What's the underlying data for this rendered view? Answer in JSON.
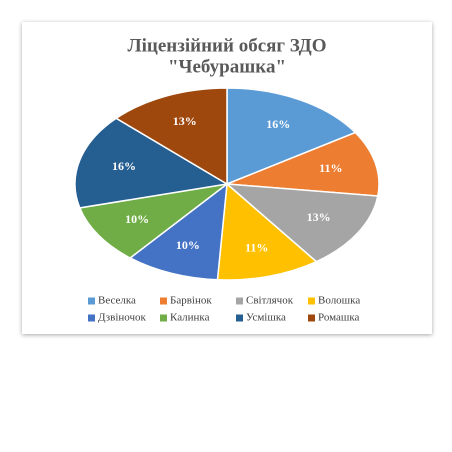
{
  "chart_data": {
    "type": "pie",
    "title": [
      "Ліцензійний обсяг ЗДО",
      "\"Чебурашка\""
    ],
    "categories": [
      "Веселка",
      "Барвінок",
      "Світлячок",
      "Волошка",
      "Дзвіночок",
      "Калинка",
      "Усмішка",
      "Ромашка"
    ],
    "values": [
      16,
      11,
      13,
      11,
      10,
      10,
      16,
      13
    ],
    "value_labels": [
      "16%",
      "11%",
      "13%",
      "11%",
      "10%",
      "10%",
      "16%",
      "13%"
    ],
    "colors": [
      "#5b9bd5",
      "#ed7d31",
      "#a5a5a5",
      "#ffc000",
      "#4472c4",
      "#70ad47",
      "#255e91",
      "#9e480e"
    ],
    "legend": "bottom"
  }
}
